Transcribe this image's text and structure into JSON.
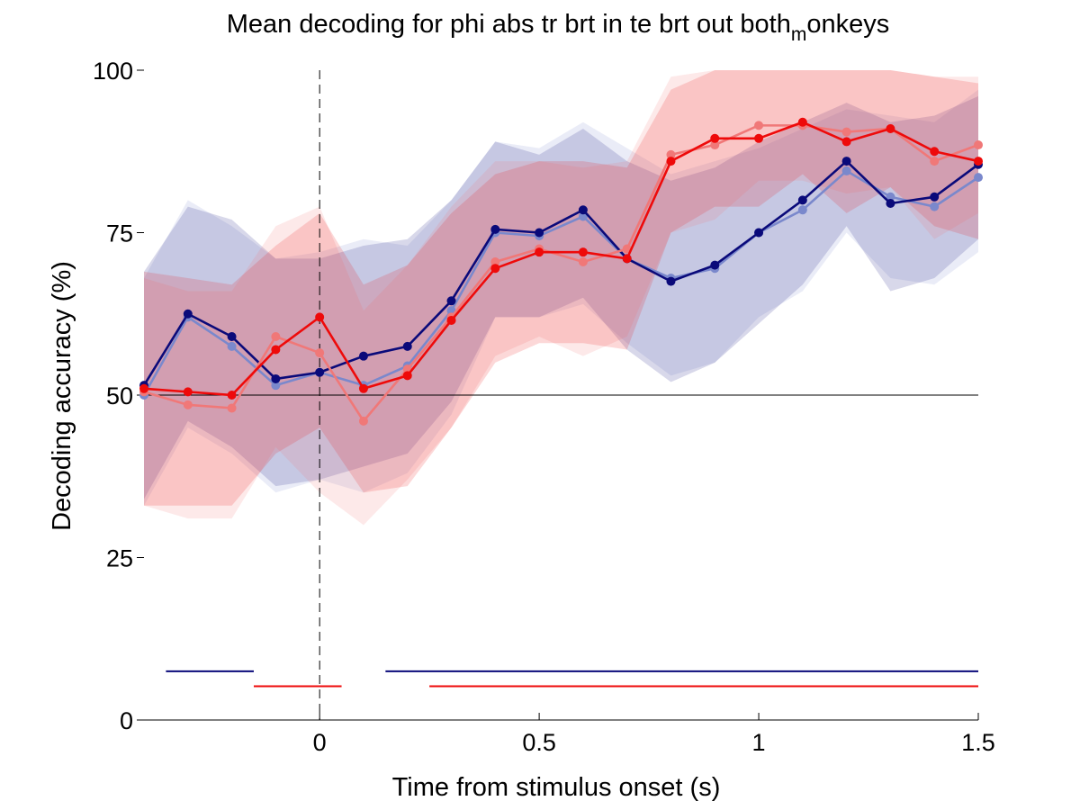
{
  "chart_data": {
    "type": "line",
    "title": {
      "main": "Mean decoding for phi abs tr brt in te brt out  both",
      "subscript": "m",
      "tail": "onkeys"
    },
    "xlabel": "Time from stimulus onset (s)",
    "ylabel": "Decoding accuracy (%)",
    "xlim": [
      -0.4,
      1.5
    ],
    "ylim": [
      0,
      100
    ],
    "xticks": [
      0,
      0.5,
      1,
      1.5
    ],
    "xtick_labels": [
      "0",
      "0.5",
      "1",
      "1.5"
    ],
    "yticks": [
      0,
      25,
      50,
      75,
      100
    ],
    "ytick_labels": [
      "0",
      "25",
      "50",
      "75",
      "100"
    ],
    "grid": false,
    "legend": "none",
    "chance_level": 50,
    "onset_marker_x": 0,
    "x": [
      -0.4,
      -0.3,
      -0.2,
      -0.1,
      0,
      0.1,
      0.2,
      0.3,
      0.4,
      0.5,
      0.6,
      0.7,
      0.8,
      0.9,
      1.0,
      1.1,
      1.2,
      1.3,
      1.4,
      1.5
    ],
    "series": [
      {
        "color": "#7a88cc",
        "values": [
          50,
          62,
          57.5,
          51.5,
          53.5,
          51.5,
          54.5,
          63,
          75,
          74.5,
          77.5,
          71,
          68,
          69.5,
          75,
          78.5,
          84.5,
          80.5,
          79,
          83.5
        ],
        "band_upper": [
          68,
          80,
          76,
          71,
          72,
          74,
          73,
          80,
          89,
          88,
          92,
          88,
          84,
          86,
          88,
          91,
          94,
          93,
          92,
          97
        ],
        "band_lower": [
          33,
          45,
          41,
          35,
          37,
          35,
          38,
          47,
          62,
          62,
          64,
          58,
          53,
          55,
          62,
          66,
          75,
          68,
          67,
          72
        ]
      },
      {
        "color": "#0a0a7a",
        "values": [
          51.5,
          62.5,
          59,
          52.5,
          53.5,
          56,
          57.5,
          64.5,
          75.5,
          75,
          78.5,
          71,
          67.5,
          70,
          75,
          80,
          86,
          79.5,
          80.5,
          85.5
        ],
        "band_upper": [
          69,
          79,
          77,
          71,
          71,
          73,
          74,
          80,
          89,
          87,
          91,
          86,
          83,
          85,
          89,
          92,
          95,
          92,
          93,
          96
        ],
        "band_lower": [
          34,
          46,
          42,
          36,
          37,
          39,
          41,
          49,
          62,
          62,
          65,
          57,
          52,
          55,
          61,
          67,
          76,
          66,
          68,
          74
        ]
      },
      {
        "color": "#f07878",
        "values": [
          50.5,
          48.5,
          48,
          59,
          56.5,
          46,
          54,
          62,
          70.5,
          72.5,
          70.5,
          72.5,
          87,
          88.5,
          91.5,
          91.5,
          90.5,
          91,
          86,
          88.5
        ],
        "band_upper": [
          68,
          66,
          66,
          76,
          79,
          63,
          70,
          79,
          86,
          86,
          85,
          86,
          99,
          100,
          100,
          100,
          100,
          100,
          99,
          99
        ],
        "band_lower": [
          33,
          31,
          31,
          42,
          35,
          30,
          37,
          45,
          56,
          59,
          56,
          59,
          75,
          77,
          83,
          83,
          81,
          82,
          74,
          78
        ]
      },
      {
        "color": "#ee0a0a",
        "values": [
          51,
          50.5,
          50,
          57,
          62,
          51,
          53,
          61.5,
          69.5,
          72,
          72,
          71,
          86,
          89.5,
          89.5,
          92,
          89,
          91,
          87.5,
          86
        ],
        "band_upper": [
          69,
          68,
          67,
          73,
          78,
          67,
          70,
          78,
          84,
          86,
          86,
          85,
          97,
          100,
          100,
          100,
          100,
          100,
          99,
          98
        ],
        "band_lower": [
          33,
          33,
          33,
          41,
          45,
          35,
          36,
          45,
          55,
          58,
          58,
          57,
          75,
          79,
          79,
          84,
          78,
          82,
          76,
          74
        ]
      }
    ],
    "significance_bars": [
      {
        "color": "#0a0a7a",
        "y": 7.5,
        "segments": [
          [
            -0.35,
            -0.15
          ],
          [
            0.15,
            1.5
          ]
        ]
      },
      {
        "color": "#ee0a0a",
        "y": 5.2,
        "segments": [
          [
            -0.15,
            0.05
          ],
          [
            0.25,
            1.5
          ]
        ]
      }
    ]
  }
}
